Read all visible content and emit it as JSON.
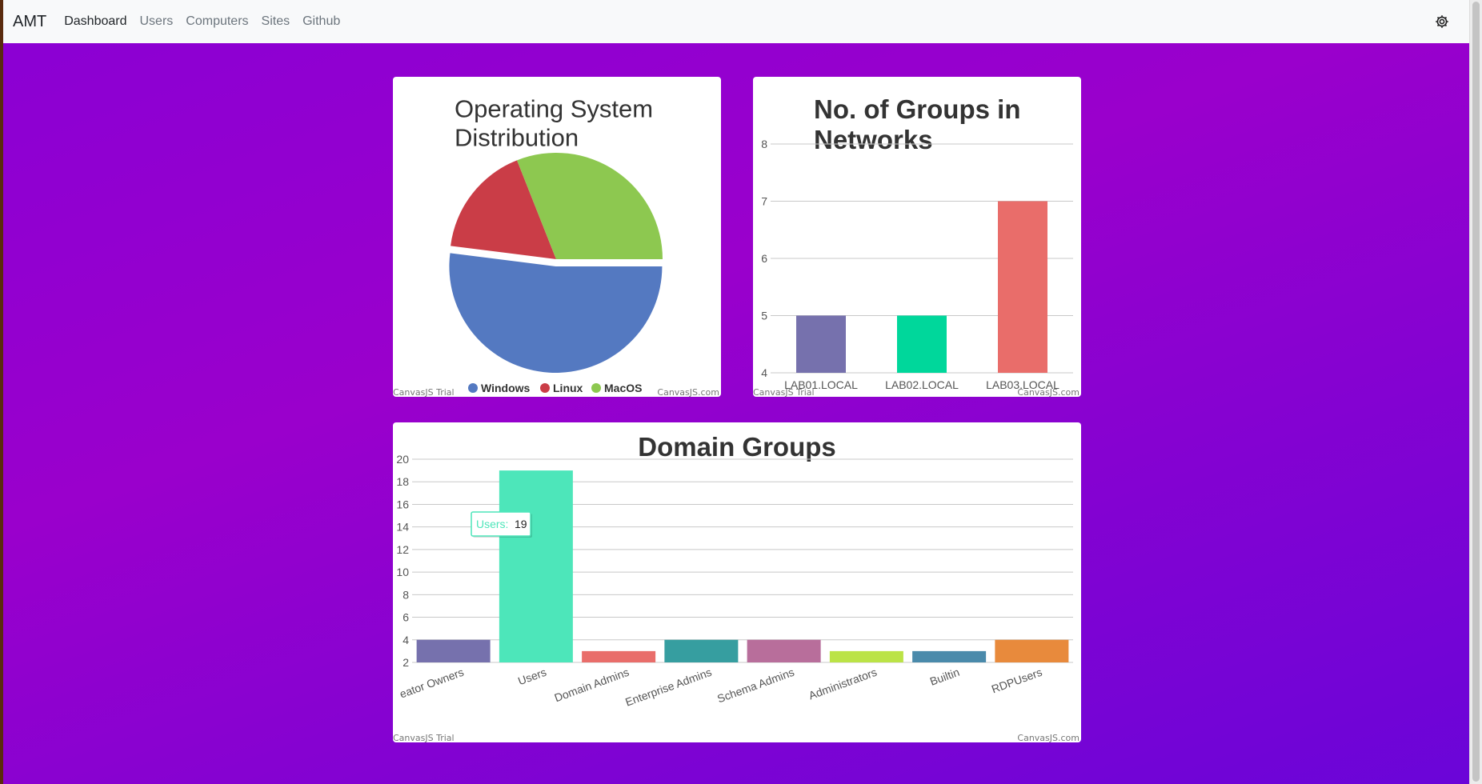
{
  "navbar": {
    "brand": "AMT",
    "links": [
      "Dashboard",
      "Users",
      "Computers",
      "Sites",
      "Github"
    ],
    "active": "Dashboard"
  },
  "watermarks": {
    "trial": "CanvasJS Trial",
    "site": "CanvasJS.com"
  },
  "chart_data": [
    {
      "type": "pie",
      "title": "Operating System Distribution",
      "title_lines": [
        "Operating System",
        "Distribution"
      ],
      "categories": [
        "Windows",
        "Linux",
        "MacOS"
      ],
      "values": [
        52,
        17,
        31
      ],
      "colors": [
        "#5479c1",
        "#ca3d47",
        "#8dc850"
      ],
      "exploded": "Windows",
      "legend": "bottom"
    },
    {
      "type": "bar",
      "title": "No. of Groups in Networks",
      "title_lines": [
        "No. of Groups in",
        "Networks"
      ],
      "categories": [
        "LAB01.LOCAL",
        "LAB02.LOCAL",
        "LAB03.LOCAL"
      ],
      "values": [
        5,
        5,
        7
      ],
      "colors": [
        "#7671ad",
        "#00d79b",
        "#e96d6a"
      ],
      "ylim": [
        4,
        8
      ],
      "yticks": [
        4,
        5,
        6,
        7,
        8
      ],
      "grid": true
    },
    {
      "type": "bar",
      "title": "Domain Groups",
      "categories": [
        "eator Owners",
        "Users",
        "Domain Admins",
        "Enterprise Admins",
        "Schema Admins",
        "Administrators",
        "Builtin",
        "RDPUsers"
      ],
      "values": [
        4,
        19,
        3,
        4,
        4,
        3,
        3,
        4
      ],
      "colors": [
        "#7671ad",
        "#4de6ba",
        "#e96d6a",
        "#369ea0",
        "#b86e9b",
        "#bbe346",
        "#4a8aab",
        "#e88a3c"
      ],
      "ylim": [
        2,
        20
      ],
      "yticks": [
        2,
        4,
        6,
        8,
        10,
        12,
        14,
        16,
        18,
        20
      ],
      "grid": true,
      "tooltip": {
        "label": "Users:",
        "value": "19"
      }
    }
  ]
}
